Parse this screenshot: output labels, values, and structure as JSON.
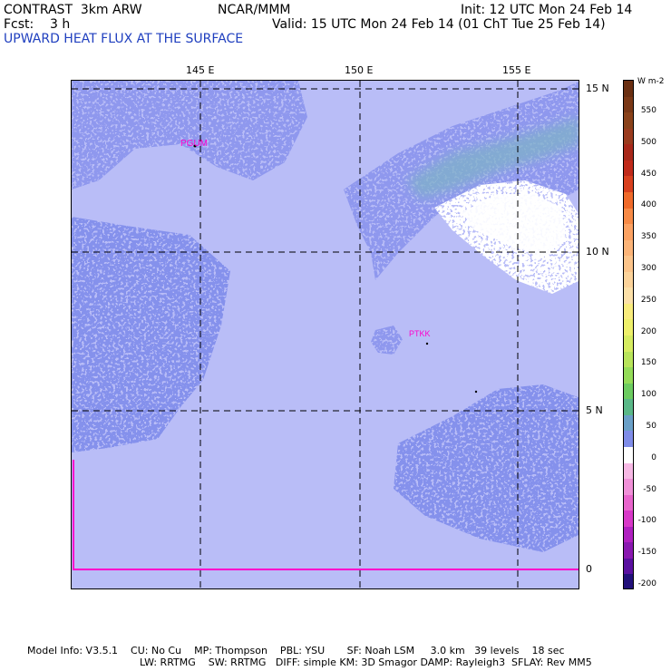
{
  "header": {
    "model": "CONTRAST  3km ARW",
    "center": "NCAR/MMM",
    "init": "Init: 12 UTC Mon 24 Feb 14",
    "fcst": "Fcst:    3 h",
    "valid": "Valid: 15 UTC Mon 24 Feb 14 (01 ChT Tue 25 Feb 14)",
    "field": "UPWARD HEAT FLUX AT THE SURFACE",
    "field_color": "#1f3fbf"
  },
  "map": {
    "lon_labels": [
      "145 E",
      "150 E",
      "155 E"
    ],
    "lat_labels": [
      "15 N",
      "10 N",
      "5 N",
      "0"
    ],
    "stations": [
      {
        "id": "PGUM"
      },
      {
        "id": "PTKK"
      }
    ],
    "station_color": "#ff00cc",
    "colors": {
      "background": "#b9bdf7",
      "low_flux": "#8f98ee",
      "medium_flux": "#7f8ce8",
      "high_flux": "#7fb0c8",
      "negative_flux": "#ffffff",
      "boundary_line": "#ff00cc"
    }
  },
  "colorbar": {
    "unit": "W m-2",
    "labels": [
      "550",
      "500",
      "450",
      "400",
      "350",
      "300",
      "250",
      "200",
      "150",
      "100",
      "50",
      "0",
      "-50",
      "-100",
      "-150",
      "-200"
    ],
    "colors": [
      "#6a2f12",
      "#7a3816",
      "#8a421a",
      "#9a3b1e",
      "#a8281a",
      "#c02a1a",
      "#d8401e",
      "#ef6a2a",
      "#f78a46",
      "#fca262",
      "#fcb478",
      "#fcc48a",
      "#fcd39a",
      "#fce0a8",
      "#f9ec7c",
      "#eef06a",
      "#d6ec60",
      "#b8e45a",
      "#94dc58",
      "#6ccc60",
      "#5ab888",
      "#6aa0c8",
      "#7f8ce8",
      "#ffffff",
      "#f6b8e4",
      "#f090d8",
      "#e864cc",
      "#d838c8",
      "#b020c0",
      "#8a18b0",
      "#5a10a0",
      "#22107a"
    ]
  },
  "footer": {
    "line1": "Model Info: V3.5.1    CU: No Cu    MP: Thompson    PBL: YSU       SF: Noah LSM     3.0 km   39 levels    18 sec",
    "line2": "LW: RRTMG    SW: RRTMG   DIFF: simple KM: 3D Smagor DAMP: Rayleigh3  SFLAY: Rev MM5"
  }
}
